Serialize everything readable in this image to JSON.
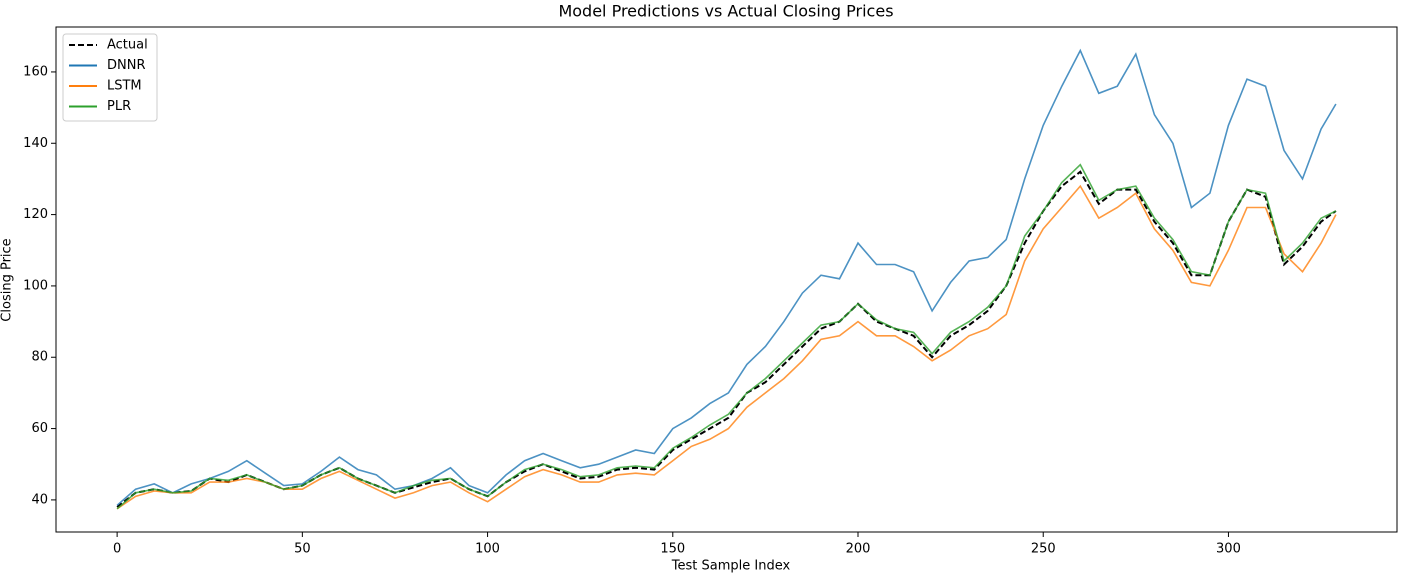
{
  "chart_data": {
    "type": "line",
    "title": "Model Predictions vs Actual Closing Prices",
    "xlabel": "Test Sample Index",
    "ylabel": "Closing Price",
    "x": [
      0,
      5,
      10,
      15,
      20,
      25,
      30,
      35,
      40,
      45,
      50,
      55,
      60,
      65,
      70,
      75,
      80,
      85,
      90,
      95,
      100,
      105,
      110,
      115,
      120,
      125,
      130,
      135,
      140,
      145,
      150,
      155,
      160,
      165,
      170,
      175,
      180,
      185,
      190,
      195,
      200,
      205,
      210,
      215,
      220,
      225,
      230,
      235,
      240,
      245,
      250,
      255,
      260,
      265,
      270,
      275,
      280,
      285,
      290,
      295,
      300,
      305,
      310,
      315,
      320,
      325,
      329
    ],
    "series": [
      {
        "name": "Actual",
        "color": "#000000",
        "linestyle": "dashed",
        "values": [
          38,
          42,
          43,
          42,
          42.5,
          46,
          45,
          47,
          45,
          43,
          44,
          47,
          49,
          46,
          44,
          42,
          43.5,
          45,
          46,
          43,
          41,
          45,
          48,
          50,
          48,
          46,
          46.5,
          48.5,
          49,
          48.5,
          54,
          57,
          60,
          63,
          70,
          73,
          78,
          83,
          88,
          90,
          95,
          90,
          88,
          86,
          80,
          86,
          89,
          93,
          100,
          112,
          121,
          128,
          132,
          123,
          127,
          127,
          118,
          112,
          103,
          103,
          118,
          127,
          125,
          106,
          111,
          118,
          121
        ]
      },
      {
        "name": "DNNR",
        "color": "#1f77b4",
        "linestyle": "solid",
        "values": [
          38.5,
          43,
          44.5,
          42,
          44.5,
          46,
          48,
          51,
          47.5,
          44,
          44.5,
          48,
          52,
          48.5,
          47,
          43,
          44,
          46,
          49,
          44,
          42,
          47,
          51,
          53,
          51,
          49,
          50,
          52,
          54,
          53,
          60,
          63,
          67,
          70,
          78,
          83,
          90,
          98,
          103,
          102,
          112,
          106,
          106,
          104,
          93,
          101,
          107,
          108,
          113,
          130,
          145,
          156,
          166,
          154,
          156,
          165,
          148,
          140,
          122,
          126,
          145,
          158,
          156,
          138,
          130,
          144,
          151
        ]
      },
      {
        "name": "LSTM",
        "color": "#ff7f0e",
        "linestyle": "solid",
        "values": [
          37.5,
          41,
          42.5,
          42,
          42,
          45,
          45,
          46,
          45,
          43,
          43,
          46,
          48,
          45.5,
          43,
          40.5,
          42,
          44,
          45,
          42,
          39.5,
          43,
          46.5,
          48.5,
          47,
          45,
          45,
          47,
          47.5,
          47,
          51,
          55,
          57,
          60,
          66,
          70,
          74,
          79,
          85,
          86,
          90,
          86,
          86,
          83,
          79,
          82,
          86,
          88,
          92,
          107,
          116,
          122,
          128,
          119,
          122,
          126,
          116,
          110,
          101,
          100,
          110,
          122,
          122,
          109,
          104,
          112,
          120
        ]
      },
      {
        "name": "PLR",
        "color": "#2ca02c",
        "linestyle": "solid",
        "values": [
          37.5,
          42,
          43,
          42,
          42.5,
          46,
          45.5,
          47,
          45,
          43,
          44,
          47,
          49,
          46,
          44,
          42,
          44,
          45.5,
          46,
          43,
          41,
          45,
          48.5,
          50,
          48.5,
          46.5,
          47,
          49,
          49.5,
          49,
          54.5,
          57.5,
          61,
          64,
          70,
          74,
          79,
          84,
          89,
          90,
          95,
          90.5,
          88,
          87,
          81,
          87,
          90,
          94,
          100,
          114,
          121,
          129,
          134,
          124,
          127,
          128,
          119,
          113,
          104,
          103,
          118,
          127,
          126,
          107,
          112,
          119,
          121
        ]
      }
    ],
    "xlim": [
      -16.5,
      345.5
    ],
    "xticks": [
      0,
      50,
      100,
      150,
      200,
      250,
      300
    ],
    "ylim": [
      31,
      172.6
    ],
    "yticks": [
      40,
      60,
      80,
      100,
      120,
      140,
      160
    ],
    "legend": "upper left"
  }
}
